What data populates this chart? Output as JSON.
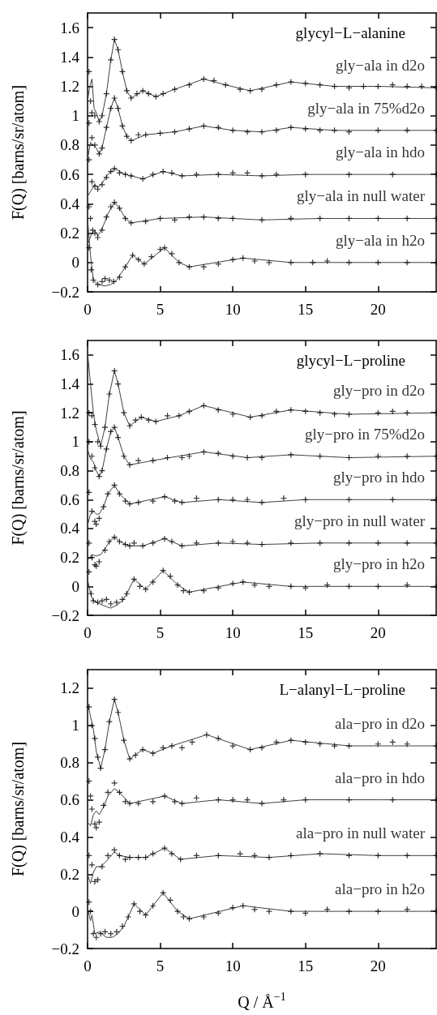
{
  "chart_data": [
    {
      "type": "scatter",
      "legend": "right",
      "title": "glycyl−L−alanine",
      "ylabel": "F(Q) [barns/sr/atom]",
      "xlim": [
        0,
        24
      ],
      "xticks": [
        0,
        5,
        10,
        15,
        20
      ],
      "ylim": [
        -0.2,
        1.7
      ],
      "yticks": [
        -0.2,
        0,
        0.2,
        0.4,
        0.6,
        0.8,
        1,
        1.2,
        1.4,
        1.6
      ],
      "series": [
        {
          "name": "gly−ala in d2o",
          "type": "scatter",
          "marker": "cross",
          "color": "#000000",
          "x": [
            0.1,
            0.2,
            0.3,
            0.5,
            0.8,
            1.0,
            1.3,
            1.6,
            1.85,
            2.1,
            2.4,
            2.7,
            3.0,
            3.4,
            3.8,
            4.2,
            4.7,
            5.2,
            6,
            7,
            8,
            8.7,
            9.5,
            10.5,
            11.2,
            12,
            13,
            14,
            15,
            16,
            17,
            18,
            19,
            20,
            21,
            22,
            23,
            24
          ],
          "values": [
            1.3,
            1.1,
            1.02,
            1.0,
            0.96,
            1.0,
            1.15,
            1.38,
            1.52,
            1.45,
            1.3,
            1.17,
            1.12,
            1.15,
            1.17,
            1.15,
            1.13,
            1.15,
            1.18,
            1.21,
            1.25,
            1.24,
            1.21,
            1.18,
            1.17,
            1.18,
            1.21,
            1.23,
            1.22,
            1.21,
            1.2,
            1.19,
            1.2,
            1.2,
            1.21,
            1.2,
            1.2,
            1.19
          ]
        },
        {
          "type": "line",
          "marker": "none",
          "color": "#404040",
          "x": [
            0,
            0.15,
            0.3,
            0.45,
            0.6,
            0.8,
            1.0,
            1.3,
            1.6,
            1.85,
            2.1,
            2.4,
            2.7,
            3,
            3.8,
            4.7,
            6,
            8,
            9.5,
            11.2,
            14,
            17,
            20,
            24
          ],
          "values": [
            1.1,
            1.2,
            1.25,
            1.05,
            1.02,
            0.96,
            1.0,
            1.15,
            1.38,
            1.52,
            1.45,
            1.3,
            1.17,
            1.12,
            1.17,
            1.13,
            1.18,
            1.25,
            1.21,
            1.17,
            1.23,
            1.2,
            1.2,
            1.19
          ]
        },
        {
          "name": "gly−ala in 75%d2o",
          "type": "scatter",
          "marker": "cross",
          "color": "#000000",
          "x": [
            0.1,
            0.3,
            0.5,
            0.8,
            1.0,
            1.3,
            1.6,
            1.85,
            2.1,
            2.4,
            2.7,
            3.0,
            3.5,
            4,
            5,
            6,
            7,
            8,
            9,
            10,
            11,
            12,
            13,
            14,
            15,
            16,
            17,
            18,
            20,
            22,
            24
          ],
          "values": [
            0.95,
            0.85,
            0.8,
            0.74,
            0.78,
            0.92,
            1.05,
            1.12,
            1.05,
            0.93,
            0.86,
            0.83,
            0.87,
            0.87,
            0.88,
            0.89,
            0.91,
            0.93,
            0.92,
            0.9,
            0.89,
            0.89,
            0.9,
            0.92,
            0.91,
            0.9,
            0.9,
            0.89,
            0.9,
            0.9,
            0.9
          ]
        },
        {
          "type": "line",
          "marker": "none",
          "color": "#404040",
          "x": [
            0,
            0.2,
            0.4,
            0.6,
            0.8,
            1.0,
            1.3,
            1.6,
            1.85,
            2.1,
            2.4,
            2.7,
            3.0,
            4,
            6,
            8,
            10,
            12,
            14,
            17,
            20,
            24
          ],
          "values": [
            0.7,
            0.82,
            0.8,
            0.78,
            0.74,
            0.78,
            0.92,
            1.05,
            1.12,
            1.05,
            0.93,
            0.86,
            0.83,
            0.87,
            0.89,
            0.93,
            0.9,
            0.89,
            0.92,
            0.9,
            0.9,
            0.9
          ]
        },
        {
          "name": "gly−ala in hdo",
          "type": "scatter",
          "marker": "cross",
          "color": "#000000",
          "x": [
            0.1,
            0.3,
            0.5,
            0.7,
            1.0,
            1.3,
            1.6,
            1.85,
            2.2,
            2.6,
            3,
            3.8,
            4.5,
            5.2,
            5.8,
            6.5,
            7.5,
            9,
            10,
            11,
            12,
            13,
            15,
            18,
            21,
            24
          ],
          "values": [
            0.7,
            0.55,
            0.52,
            0.5,
            0.53,
            0.58,
            0.62,
            0.64,
            0.61,
            0.6,
            0.59,
            0.57,
            0.6,
            0.62,
            0.61,
            0.59,
            0.6,
            0.6,
            0.61,
            0.61,
            0.59,
            0.6,
            0.6,
            0.6,
            0.6,
            0.6
          ]
        },
        {
          "type": "line",
          "marker": "none",
          "color": "#404040",
          "x": [
            0,
            0.3,
            0.5,
            0.7,
            1.0,
            1.4,
            1.85,
            2.6,
            3.8,
            5.2,
            6.5,
            9,
            12,
            15,
            20,
            24
          ],
          "values": [
            0.45,
            0.5,
            0.53,
            0.51,
            0.54,
            0.6,
            0.64,
            0.6,
            0.57,
            0.62,
            0.59,
            0.6,
            0.59,
            0.6,
            0.6,
            0.6
          ]
        },
        {
          "name": "gly−ala in null water",
          "type": "scatter",
          "marker": "cross",
          "color": "#000000",
          "x": [
            0.1,
            0.2,
            0.35,
            0.5,
            0.7,
            1.0,
            1.3,
            1.6,
            1.85,
            2.2,
            2.6,
            3,
            4,
            5,
            6,
            7,
            8,
            9,
            10,
            12,
            14,
            16,
            18,
            20,
            22,
            24
          ],
          "values": [
            0.38,
            0.3,
            0.22,
            0.2,
            0.17,
            0.22,
            0.31,
            0.38,
            0.41,
            0.37,
            0.3,
            0.27,
            0.28,
            0.3,
            0.29,
            0.31,
            0.31,
            0.3,
            0.3,
            0.29,
            0.3,
            0.3,
            0.3,
            0.3,
            0.3,
            0.3
          ]
        },
        {
          "type": "line",
          "marker": "none",
          "color": "#404040",
          "x": [
            0,
            0.3,
            0.5,
            0.7,
            1.0,
            1.4,
            1.85,
            2.2,
            2.6,
            3,
            5,
            8,
            12,
            16,
            20,
            24
          ],
          "values": [
            0.12,
            0.2,
            0.22,
            0.18,
            0.23,
            0.33,
            0.41,
            0.37,
            0.3,
            0.27,
            0.3,
            0.31,
            0.29,
            0.3,
            0.3,
            0.3
          ]
        },
        {
          "name": "gly−ala in h2o",
          "type": "scatter",
          "marker": "cross",
          "color": "#000000",
          "x": [
            0.1,
            0.25,
            0.4,
            0.7,
            1.0,
            1.2,
            1.5,
            1.8,
            2.2,
            2.6,
            3.1,
            3.5,
            3.9,
            4.4,
            5.0,
            5.3,
            5.8,
            6.3,
            7,
            8,
            9,
            10,
            10.7,
            11.5,
            12.5,
            14,
            15.5,
            16.5,
            18,
            20,
            22,
            24
          ],
          "values": [
            0.1,
            -0.05,
            -0.12,
            -0.15,
            -0.13,
            -0.11,
            -0.12,
            -0.13,
            -0.1,
            -0.03,
            0.05,
            0.02,
            -0.01,
            0.04,
            0.09,
            0.1,
            0.06,
            0.0,
            -0.03,
            -0.03,
            -0.01,
            0.02,
            0.03,
            0.01,
            0.0,
            0.0,
            0.0,
            0.01,
            0.0,
            0.0,
            0.0,
            0.0
          ]
        },
        {
          "type": "line",
          "marker": "none",
          "color": "#404040",
          "x": [
            0,
            0.2,
            0.4,
            0.7,
            1.2,
            1.6,
            2.0,
            2.6,
            3.1,
            3.9,
            5.3,
            6.3,
            7,
            10.7,
            14,
            18,
            24
          ],
          "values": [
            0.3,
            0.05,
            -0.12,
            -0.15,
            -0.16,
            -0.15,
            -0.12,
            -0.03,
            0.05,
            -0.01,
            0.1,
            0.0,
            -0.03,
            0.03,
            0.0,
            0.0,
            0.0
          ]
        }
      ]
    },
    {
      "type": "scatter",
      "legend": "right",
      "title": "glycyl−L−proline",
      "ylabel": "F(Q) [barns/sr/atom]",
      "xlim": [
        0,
        24
      ],
      "xticks": [
        0,
        5,
        10,
        15,
        20
      ],
      "ylim": [
        -0.2,
        1.7
      ],
      "yticks": [
        -0.2,
        0,
        0.2,
        0.4,
        0.6,
        0.8,
        1,
        1.2,
        1.4,
        1.6
      ],
      "series": [
        {
          "name": "gly−pro in d2o",
          "type": "scatter",
          "marker": "cross",
          "color": "#000000",
          "x": [
            0.1,
            0.3,
            0.5,
            0.7,
            0.9,
            1.2,
            1.5,
            1.85,
            2.1,
            2.5,
            2.9,
            3.3,
            3.7,
            4.2,
            4.7,
            5.5,
            6.3,
            7,
            8,
            9,
            10,
            11.2,
            12,
            13,
            14,
            15,
            16,
            17,
            18,
            20,
            21,
            22,
            24
          ],
          "values": [
            1.2,
            1.18,
            1.12,
            1.0,
            0.97,
            1.1,
            1.33,
            1.49,
            1.4,
            1.2,
            1.11,
            1.15,
            1.17,
            1.15,
            1.14,
            1.18,
            1.18,
            1.21,
            1.25,
            1.22,
            1.19,
            1.17,
            1.18,
            1.21,
            1.22,
            1.21,
            1.2,
            1.19,
            1.19,
            1.2,
            1.21,
            1.2,
            1.2
          ]
        },
        {
          "type": "line",
          "marker": "none",
          "color": "#404040",
          "x": [
            0,
            0.2,
            0.4,
            0.6,
            0.9,
            1.2,
            1.5,
            1.85,
            2.1,
            2.5,
            2.9,
            3.7,
            4.7,
            6.3,
            8,
            11.2,
            14,
            18,
            24
          ],
          "values": [
            1.62,
            1.4,
            1.2,
            1.08,
            0.97,
            1.1,
            1.33,
            1.49,
            1.4,
            1.2,
            1.11,
            1.17,
            1.14,
            1.18,
            1.25,
            1.17,
            1.22,
            1.19,
            1.2
          ]
        },
        {
          "name": "gly−pro in 75%d2o",
          "type": "scatter",
          "marker": "cross",
          "color": "#000000",
          "x": [
            0.1,
            0.3,
            0.5,
            0.8,
            1.0,
            1.3,
            1.6,
            1.85,
            2.1,
            2.5,
            2.9,
            3.5,
            4.5,
            5.5,
            6.5,
            7,
            8,
            9,
            10,
            11,
            12,
            14,
            16,
            18,
            20,
            22,
            24
          ],
          "values": [
            1.0,
            0.9,
            0.82,
            0.76,
            0.8,
            0.95,
            1.07,
            1.1,
            1.03,
            0.9,
            0.84,
            0.87,
            0.87,
            0.89,
            0.89,
            0.9,
            0.93,
            0.92,
            0.9,
            0.89,
            0.89,
            0.91,
            0.9,
            0.89,
            0.9,
            0.9,
            0.9
          ]
        },
        {
          "type": "line",
          "marker": "none",
          "color": "#404040",
          "x": [
            0,
            0.2,
            0.4,
            0.6,
            0.8,
            1.0,
            1.3,
            1.6,
            1.85,
            2.1,
            2.5,
            2.9,
            4.5,
            8,
            11,
            14,
            18,
            24
          ],
          "values": [
            0.95,
            0.88,
            0.86,
            0.8,
            0.76,
            0.8,
            0.95,
            1.07,
            1.1,
            1.03,
            0.9,
            0.84,
            0.87,
            0.93,
            0.89,
            0.91,
            0.89,
            0.9
          ]
        },
        {
          "name": "gly−pro in hdo",
          "type": "scatter",
          "marker": "cross",
          "color": "#000000",
          "x": [
            0.1,
            0.3,
            0.5,
            0.6,
            0.8,
            1.1,
            1.4,
            1.85,
            2.2,
            2.6,
            2.9,
            3.5,
            4.5,
            5.3,
            6,
            6.5,
            7.5,
            9,
            10,
            11,
            12,
            13.5,
            15,
            18,
            21,
            24
          ],
          "values": [
            0.65,
            0.52,
            0.45,
            0.43,
            0.47,
            0.55,
            0.64,
            0.7,
            0.64,
            0.59,
            0.57,
            0.58,
            0.59,
            0.62,
            0.59,
            0.58,
            0.61,
            0.6,
            0.6,
            0.6,
            0.58,
            0.61,
            0.6,
            0.6,
            0.6,
            0.6
          ]
        },
        {
          "type": "line",
          "marker": "none",
          "color": "#404040",
          "x": [
            0,
            0.2,
            0.4,
            0.6,
            0.8,
            1.1,
            1.4,
            1.85,
            2.2,
            2.9,
            5.3,
            6.5,
            9,
            12,
            15,
            20,
            24
          ],
          "values": [
            0.42,
            0.5,
            0.52,
            0.5,
            0.5,
            0.55,
            0.64,
            0.7,
            0.64,
            0.57,
            0.62,
            0.58,
            0.6,
            0.58,
            0.6,
            0.6,
            0.6
          ]
        },
        {
          "name": "gly−pro in null water",
          "type": "scatter",
          "marker": "cross",
          "color": "#000000",
          "x": [
            0.1,
            0.3,
            0.5,
            0.6,
            0.8,
            1.2,
            1.5,
            1.85,
            2.2,
            2.6,
            2.9,
            3.2,
            3.8,
            4.5,
            5.3,
            5.8,
            6.5,
            7.5,
            9,
            10,
            11,
            12,
            14,
            16,
            18,
            20,
            22,
            24
          ],
          "values": [
            0.3,
            0.2,
            0.15,
            0.14,
            0.17,
            0.25,
            0.31,
            0.34,
            0.31,
            0.29,
            0.28,
            0.3,
            0.28,
            0.3,
            0.33,
            0.31,
            0.28,
            0.3,
            0.3,
            0.31,
            0.3,
            0.29,
            0.3,
            0.3,
            0.3,
            0.3,
            0.3,
            0.3
          ]
        },
        {
          "type": "line",
          "marker": "none",
          "color": "#404040",
          "x": [
            0,
            0.3,
            0.6,
            0.9,
            1.2,
            1.5,
            1.85,
            2.2,
            2.9,
            3.8,
            5.3,
            6.5,
            9,
            12,
            16,
            20,
            24
          ],
          "values": [
            0.18,
            0.22,
            0.21,
            0.22,
            0.26,
            0.31,
            0.34,
            0.31,
            0.28,
            0.28,
            0.33,
            0.28,
            0.3,
            0.29,
            0.3,
            0.3,
            0.3
          ]
        },
        {
          "name": "gly−pro in h2o",
          "type": "scatter",
          "marker": "cross",
          "color": "#000000",
          "x": [
            0.1,
            0.25,
            0.4,
            0.7,
            1.0,
            1.3,
            1.6,
            2.0,
            2.4,
            2.7,
            3.2,
            3.6,
            4.0,
            4.5,
            5.2,
            5.7,
            6.2,
            6.6,
            7,
            8,
            9,
            10,
            10.7,
            11.5,
            12.5,
            14,
            15,
            16.5,
            18,
            20,
            22,
            24
          ],
          "values": [
            0.1,
            -0.05,
            -0.1,
            -0.11,
            -0.1,
            -0.09,
            -0.12,
            -0.11,
            -0.09,
            -0.05,
            0.05,
            0.0,
            -0.02,
            0.03,
            0.11,
            0.07,
            0.01,
            -0.03,
            -0.04,
            -0.03,
            -0.01,
            0.02,
            0.03,
            0.01,
            0.0,
            0.0,
            -0.01,
            0.01,
            0.0,
            0.0,
            0.01,
            0.0
          ]
        },
        {
          "type": "line",
          "marker": "none",
          "color": "#404040",
          "x": [
            0,
            0.2,
            0.4,
            0.8,
            1.3,
            1.6,
            2.0,
            2.4,
            2.7,
            3.2,
            4.0,
            5.2,
            6.2,
            7,
            10.7,
            14,
            18,
            24
          ],
          "values": [
            0.05,
            -0.05,
            -0.1,
            -0.12,
            -0.14,
            -0.15,
            -0.13,
            -0.1,
            -0.05,
            0.05,
            -0.02,
            0.11,
            0.01,
            -0.04,
            0.03,
            0.0,
            0.0,
            0.0
          ]
        }
      ]
    },
    {
      "type": "scatter",
      "legend": "right",
      "title": "L−alanyl−L−proline",
      "xlabel": "Q / Å$^{−1}$",
      "ylabel": "F(Q) [barns/sr/atom]",
      "xlim": [
        0,
        24
      ],
      "xticks": [
        0,
        5,
        10,
        15,
        20
      ],
      "ylim": [
        -0.2,
        1.3
      ],
      "yticks": [
        -0.2,
        0,
        0.2,
        0.4,
        0.6,
        0.8,
        1,
        1.2
      ],
      "series": [
        {
          "name": "ala−pro in d2o",
          "type": "scatter",
          "marker": "cross",
          "color": "#000000",
          "x": [
            0.1,
            0.3,
            0.5,
            0.7,
            0.9,
            1.2,
            1.5,
            1.85,
            2.1,
            2.5,
            2.9,
            3.3,
            3.8,
            4.5,
            5.2,
            5.8,
            6.5,
            7.2,
            8.2,
            9,
            10,
            11.2,
            12,
            13,
            14,
            15,
            16,
            17,
            18,
            20,
            21,
            22,
            24
          ],
          "values": [
            1.1,
            1.0,
            0.93,
            0.83,
            0.77,
            0.87,
            1.02,
            1.14,
            1.07,
            0.92,
            0.82,
            0.84,
            0.87,
            0.85,
            0.88,
            0.89,
            0.88,
            0.91,
            0.95,
            0.93,
            0.89,
            0.87,
            0.88,
            0.91,
            0.92,
            0.91,
            0.9,
            0.89,
            0.89,
            0.9,
            0.91,
            0.9,
            0.89
          ]
        },
        {
          "type": "line",
          "marker": "none",
          "color": "#404040",
          "x": [
            0,
            0.2,
            0.4,
            0.6,
            0.9,
            1.2,
            1.5,
            1.85,
            2.1,
            2.5,
            2.9,
            3.8,
            4.5,
            5.8,
            8.2,
            11.2,
            14,
            18,
            24
          ],
          "values": [
            1.12,
            1.05,
            0.98,
            0.86,
            0.77,
            0.87,
            1.02,
            1.14,
            1.07,
            0.92,
            0.82,
            0.87,
            0.85,
            0.89,
            0.95,
            0.87,
            0.92,
            0.89,
            0.89
          ]
        },
        {
          "name": "ala−pro in hdo",
          "type": "scatter",
          "marker": "cross",
          "color": "#000000",
          "x": [
            0.1,
            0.2,
            0.3,
            0.5,
            0.6,
            0.8,
            1.1,
            1.4,
            1.85,
            2.2,
            2.6,
            2.9,
            3.5,
            4.5,
            5.3,
            6,
            6.5,
            7.5,
            9,
            10,
            11,
            12,
            13.5,
            15,
            18,
            21,
            24
          ],
          "values": [
            0.7,
            0.62,
            0.55,
            0.47,
            0.45,
            0.48,
            0.57,
            0.64,
            0.69,
            0.64,
            0.59,
            0.58,
            0.58,
            0.59,
            0.62,
            0.59,
            0.58,
            0.61,
            0.6,
            0.6,
            0.6,
            0.58,
            0.6,
            0.6,
            0.6,
            0.6,
            0.6
          ]
        },
        {
          "type": "line",
          "marker": "none",
          "color": "#404040",
          "x": [
            0,
            0.2,
            0.4,
            0.6,
            0.8,
            1.1,
            1.4,
            1.85,
            2.2,
            2.9,
            5.3,
            6.5,
            9,
            12,
            15,
            20,
            24
          ],
          "values": [
            0.48,
            0.46,
            0.52,
            0.54,
            0.52,
            0.56,
            0.62,
            0.66,
            0.64,
            0.58,
            0.62,
            0.58,
            0.6,
            0.58,
            0.6,
            0.6,
            0.6
          ]
        },
        {
          "name": "ala−pro in null water",
          "type": "scatter",
          "marker": "cross",
          "color": "#000000",
          "x": [
            0.1,
            0.3,
            0.5,
            0.7,
            1.0,
            1.4,
            1.85,
            2.2,
            2.6,
            2.9,
            3.5,
            4,
            4.5,
            5.3,
            5.8,
            6.4,
            7.5,
            9,
            10.5,
            11.5,
            12.5,
            14,
            16,
            18,
            20,
            22,
            24
          ],
          "values": [
            0.3,
            0.25,
            0.16,
            0.17,
            0.24,
            0.3,
            0.33,
            0.3,
            0.28,
            0.29,
            0.29,
            0.29,
            0.31,
            0.34,
            0.31,
            0.28,
            0.3,
            0.3,
            0.31,
            0.3,
            0.29,
            0.3,
            0.31,
            0.3,
            0.3,
            0.3,
            0.3
          ]
        },
        {
          "type": "line",
          "marker": "none",
          "color": "#404040",
          "x": [
            0,
            0.2,
            0.4,
            0.6,
            0.9,
            1.3,
            1.85,
            2.2,
            2.9,
            4,
            5.3,
            6.4,
            9,
            12.5,
            16,
            20,
            24
          ],
          "values": [
            0.2,
            0.15,
            0.21,
            0.24,
            0.24,
            0.27,
            0.32,
            0.3,
            0.29,
            0.29,
            0.34,
            0.28,
            0.3,
            0.29,
            0.31,
            0.3,
            0.3
          ]
        },
        {
          "name": "ala−pro in h2o",
          "type": "scatter",
          "marker": "cross",
          "color": "#000000",
          "x": [
            0.1,
            0.2,
            0.4,
            0.6,
            0.9,
            1.2,
            1.6,
            2.0,
            2.4,
            2.8,
            3.2,
            3.6,
            4.0,
            4.5,
            5.2,
            5.7,
            6.2,
            6.6,
            7,
            8,
            9,
            10,
            10.7,
            11.5,
            12.5,
            14,
            15,
            16.5,
            18,
            20,
            22,
            24
          ],
          "values": [
            0.05,
            0.0,
            -0.12,
            -0.14,
            -0.12,
            -0.11,
            -0.12,
            -0.11,
            -0.08,
            -0.03,
            0.04,
            0.0,
            -0.02,
            0.03,
            0.1,
            0.06,
            0.0,
            -0.03,
            -0.04,
            -0.03,
            -0.01,
            0.02,
            0.03,
            0.01,
            0.0,
            0.0,
            -0.01,
            0.01,
            0.0,
            0.0,
            0.01,
            0.0
          ]
        },
        {
          "type": "line",
          "marker": "none",
          "color": "#404040",
          "x": [
            0,
            0.2,
            0.3,
            0.5,
            0.8,
            1.3,
            1.7,
            2.1,
            2.5,
            2.8,
            3.2,
            4.0,
            5.2,
            6.2,
            7,
            10.7,
            14,
            18,
            24
          ],
          "values": [
            0.02,
            -0.05,
            -0.02,
            -0.12,
            -0.11,
            -0.14,
            -0.14,
            -0.12,
            -0.08,
            -0.03,
            0.04,
            -0.02,
            0.1,
            0.0,
            -0.04,
            0.03,
            0.0,
            0.0,
            0.0
          ]
        }
      ]
    }
  ]
}
